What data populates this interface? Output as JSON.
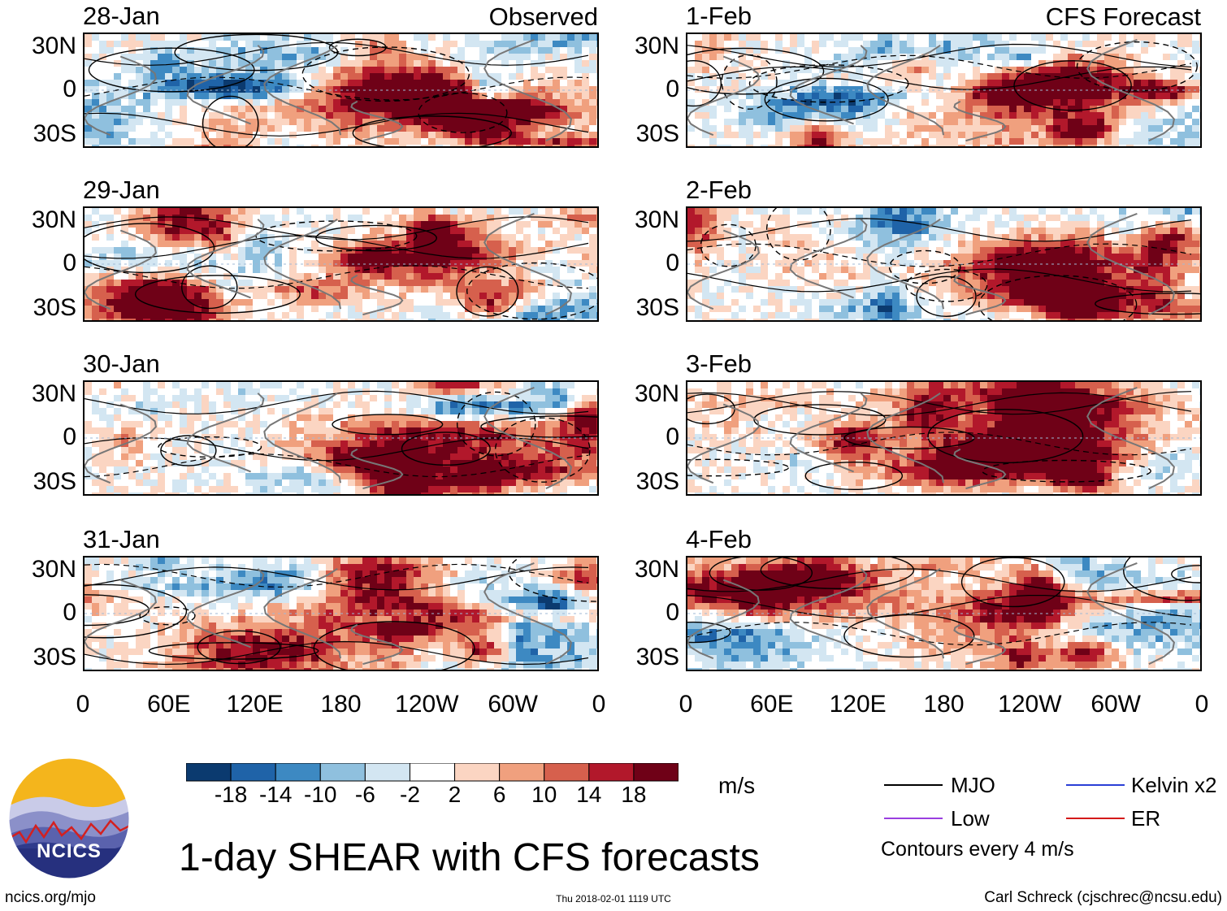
{
  "chart_data": {
    "type": "heatmap",
    "title": "1-day SHEAR with CFS forecasts",
    "variable": "SHEAR",
    "units": "m/s",
    "colorbar": {
      "ticks": [
        "-18",
        "-14",
        "-10",
        "-6",
        "-2",
        "2",
        "6",
        "10",
        "14",
        "18"
      ],
      "colors": [
        "#0b3a6f",
        "#1f63a8",
        "#3d89c2",
        "#8fc0de",
        "#d3e6f2",
        "#ffffff",
        "#fbd5c2",
        "#f0a07e",
        "#d6604d",
        "#b2182b",
        "#6f0117"
      ]
    },
    "lat_ticks": [
      "30N",
      "0",
      "30S"
    ],
    "lon_ticks": [
      "0",
      "60E",
      "120E",
      "180",
      "120W",
      "60W",
      "0"
    ],
    "column_labels": {
      "left": "Observed",
      "right": "CFS Forecast"
    },
    "panels": [
      {
        "date": "28-Jan",
        "source": "Observed"
      },
      {
        "date": "29-Jan",
        "source": "Observed"
      },
      {
        "date": "30-Jan",
        "source": "Observed"
      },
      {
        "date": "31-Jan",
        "source": "Observed"
      },
      {
        "date": "1-Feb",
        "source": "CFS Forecast"
      },
      {
        "date": "2-Feb",
        "source": "CFS Forecast"
      },
      {
        "date": "3-Feb",
        "source": "CFS Forecast"
      },
      {
        "date": "4-Feb",
        "source": "CFS Forecast"
      }
    ],
    "legend": [
      {
        "label": "MJO",
        "color": "#000000"
      },
      {
        "label": "Kelvin x2",
        "color": "#2b3fd6"
      },
      {
        "label": "Low",
        "color": "#9a3ee0"
      },
      {
        "label": "ER",
        "color": "#d41a1a"
      }
    ],
    "contour_note": "Contours every 4 m/s"
  },
  "logo": {
    "text": "NCICS"
  },
  "footer": {
    "site": "ncics.org/mjo",
    "timestamp": "Thu 2018-02-01 1119 UTC",
    "author": "Carl Schreck (cjschrec@ncsu.edu)"
  }
}
